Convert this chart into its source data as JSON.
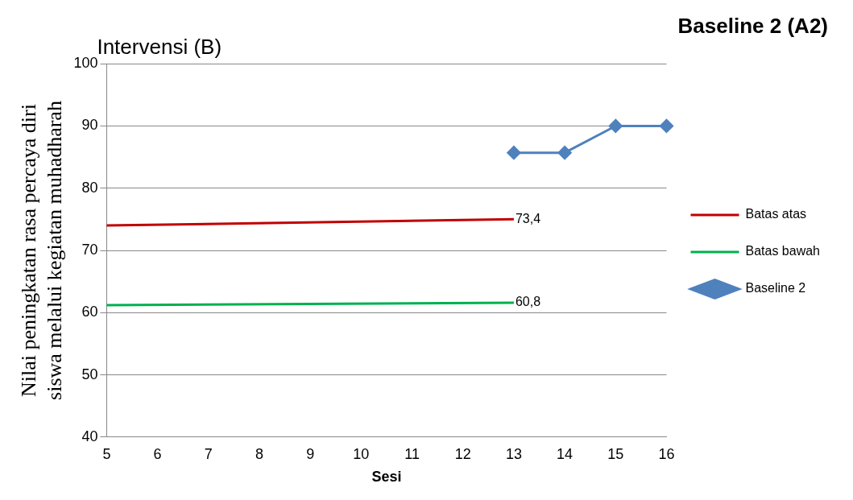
{
  "chart_data": {
    "type": "line",
    "title": "Baseline 2 (A2)",
    "xlabel": "Sesi",
    "ylabel": "Nilai peningkatan rasa percaya diri siswa melalui kegiatan muhadharah",
    "categories": [
      "5",
      "6",
      "7",
      "8",
      "9",
      "10",
      "11",
      "12",
      "13",
      "14",
      "15",
      "16"
    ],
    "series": [
      {
        "name": "Batas atas",
        "color": "#c00000",
        "marker": "none",
        "values": [
          74,
          null,
          null,
          null,
          null,
          null,
          null,
          null,
          75,
          null,
          null,
          null
        ]
      },
      {
        "name": "Batas bawah",
        "color": "#00b050",
        "marker": "none",
        "values": [
          61.2,
          null,
          null,
          null,
          null,
          null,
          null,
          null,
          61.6,
          null,
          null,
          null
        ]
      },
      {
        "name": "Baseline 2",
        "color": "#4f81bd",
        "marker": "diamond",
        "values": [
          null,
          null,
          null,
          null,
          null,
          null,
          null,
          null,
          85.7,
          85.7,
          90,
          90
        ]
      }
    ],
    "ylim": [
      40,
      100
    ],
    "yticks": [
      40,
      50,
      60,
      70,
      80,
      90,
      100
    ],
    "grid": "y",
    "legend": "right",
    "annotations": [
      "Intervensi (B)",
      {
        "text": "73,4",
        "x": "13",
        "y": 75
      },
      {
        "text": "60,8",
        "x": "13",
        "y": 61.6
      }
    ]
  }
}
